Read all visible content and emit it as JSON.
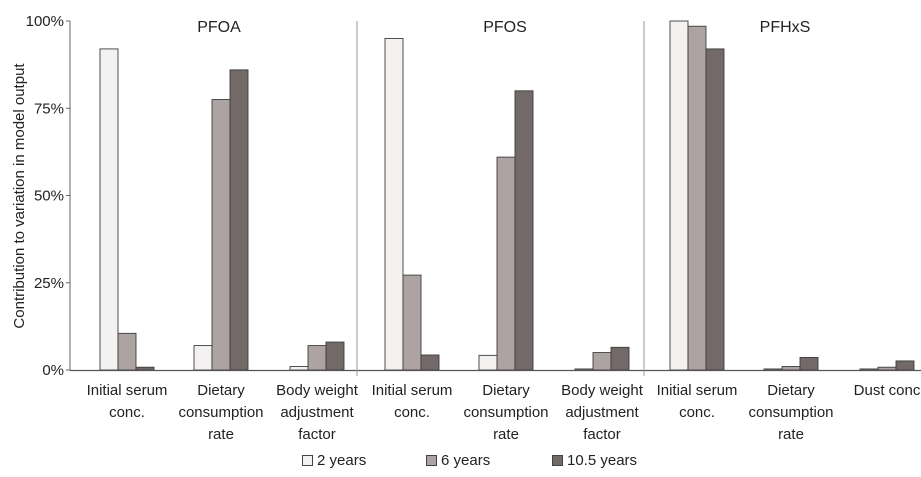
{
  "chart_data": {
    "type": "bar",
    "ylabel": "Contribution to variation in model output",
    "ylim": [
      0,
      100
    ],
    "yticks": [
      "0%",
      "25%",
      "50%",
      "75%",
      "100%"
    ],
    "series_names": [
      "2 years",
      "6 years",
      "10.5 years"
    ],
    "colors": {
      "2 years": "#f3f2f1",
      "6 years": "#aca3a2",
      "10.5 years": "#736968"
    },
    "panels": [
      {
        "title": "PFOA",
        "categories": [
          [
            "Initial serum",
            "conc."
          ],
          [
            "Dietary",
            "consumption",
            "rate"
          ],
          [
            "Body weight",
            "adjustment",
            "factor"
          ]
        ],
        "series": [
          {
            "name": "2 years",
            "values": [
              92,
              7,
              1
            ]
          },
          {
            "name": "6 years",
            "values": [
              10.5,
              77.5,
              7
            ]
          },
          {
            "name": "10.5 years",
            "values": [
              0.8,
              86,
              8
            ]
          }
        ]
      },
      {
        "title": "PFOS",
        "categories": [
          [
            "Initial serum",
            "conc."
          ],
          [
            "Dietary",
            "consumption",
            "rate"
          ],
          [
            "Body weight",
            "adjustment",
            "factor"
          ]
        ],
        "series": [
          {
            "name": "2 years",
            "values": [
              95,
              4.2,
              0.3
            ]
          },
          {
            "name": "6 years",
            "values": [
              27.2,
              61,
              5
            ]
          },
          {
            "name": "10.5 years",
            "values": [
              4.3,
              80,
              6.5
            ]
          }
        ]
      },
      {
        "title": "PFHxS",
        "categories": [
          [
            "Initial serum",
            "conc."
          ],
          [
            "Dietary",
            "consumption",
            "rate"
          ],
          [
            "Dust conc"
          ]
        ],
        "series": [
          {
            "name": "2 years",
            "values": [
              100,
              0.3,
              0.3
            ]
          },
          {
            "name": "6 years",
            "values": [
              98.5,
              1,
              0.8
            ]
          },
          {
            "name": "10.5 years",
            "values": [
              92,
              3.6,
              2.6
            ]
          }
        ]
      }
    ]
  },
  "legend": {
    "items": [
      {
        "label": "2 years",
        "color": "#f3f2f1"
      },
      {
        "label": "6 years",
        "color": "#aca3a2"
      },
      {
        "label": "10.5 years",
        "color": "#736968"
      }
    ]
  }
}
